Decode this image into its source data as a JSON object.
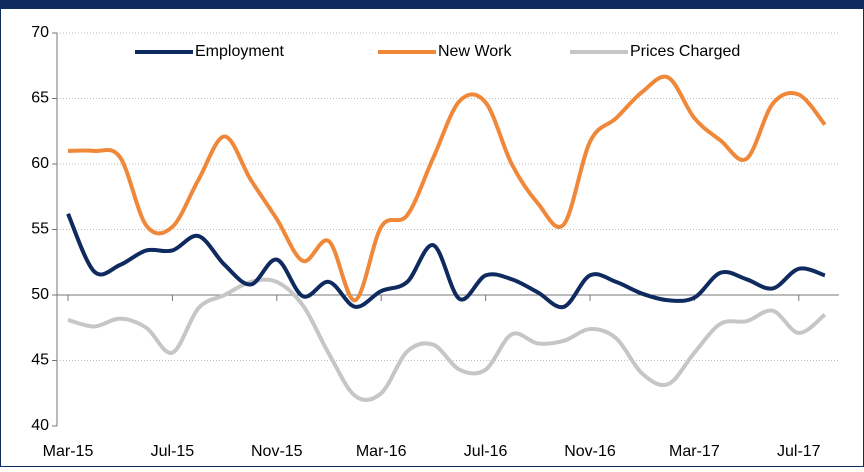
{
  "chart_data": {
    "type": "line",
    "categories": [
      "Mar-15",
      null,
      null,
      null,
      "Jul-15",
      null,
      null,
      null,
      "Nov-15",
      null,
      null,
      null,
      "Mar-16",
      null,
      null,
      null,
      "Jul-16",
      null,
      null,
      null,
      "Nov-16",
      null,
      null,
      null,
      "Mar-17",
      null,
      null,
      null,
      "Jul-17",
      null
    ],
    "series": [
      {
        "name": "Employment",
        "color": "#0f2a5e",
        "values": [
          56.2,
          51.8,
          52.3,
          53.4,
          53.4,
          54.5,
          52.3,
          50.8,
          52.7,
          49.9,
          51.0,
          49.1,
          50.3,
          51.0,
          53.8,
          49.7,
          51.5,
          51.2,
          50.2,
          49.1,
          51.5,
          51.0,
          50.1,
          49.6,
          49.8,
          51.7,
          51.2,
          50.5,
          52.0,
          51.5
        ]
      },
      {
        "name": "New Work",
        "color": "#f0883a",
        "values": [
          61.0,
          61.0,
          60.5,
          55.3,
          55.2,
          58.8,
          62.1,
          58.8,
          55.8,
          52.6,
          54.1,
          49.6,
          55.2,
          56.1,
          60.5,
          64.8,
          64.7,
          60.0,
          57.0,
          55.4,
          61.7,
          63.5,
          65.5,
          66.6,
          63.5,
          61.8,
          60.4,
          64.6,
          65.3,
          63.0
        ]
      },
      {
        "name": "Prices Charged",
        "color": "#c6c6c6",
        "values": [
          48.1,
          47.6,
          48.2,
          47.5,
          45.6,
          49.0,
          50.0,
          51.0,
          51.0,
          49.2,
          45.5,
          42.3,
          42.5,
          45.7,
          46.2,
          44.3,
          44.3,
          47.0,
          46.3,
          46.5,
          47.4,
          46.7,
          44.0,
          43.2,
          45.6,
          47.8,
          48.0,
          48.8,
          47.1,
          48.5
        ]
      }
    ],
    "ylim": [
      40,
      70
    ],
    "yticks": [
      40,
      45,
      50,
      55,
      60,
      65,
      70
    ],
    "grid": true,
    "xaxis_cross": 50,
    "legend": "top"
  }
}
